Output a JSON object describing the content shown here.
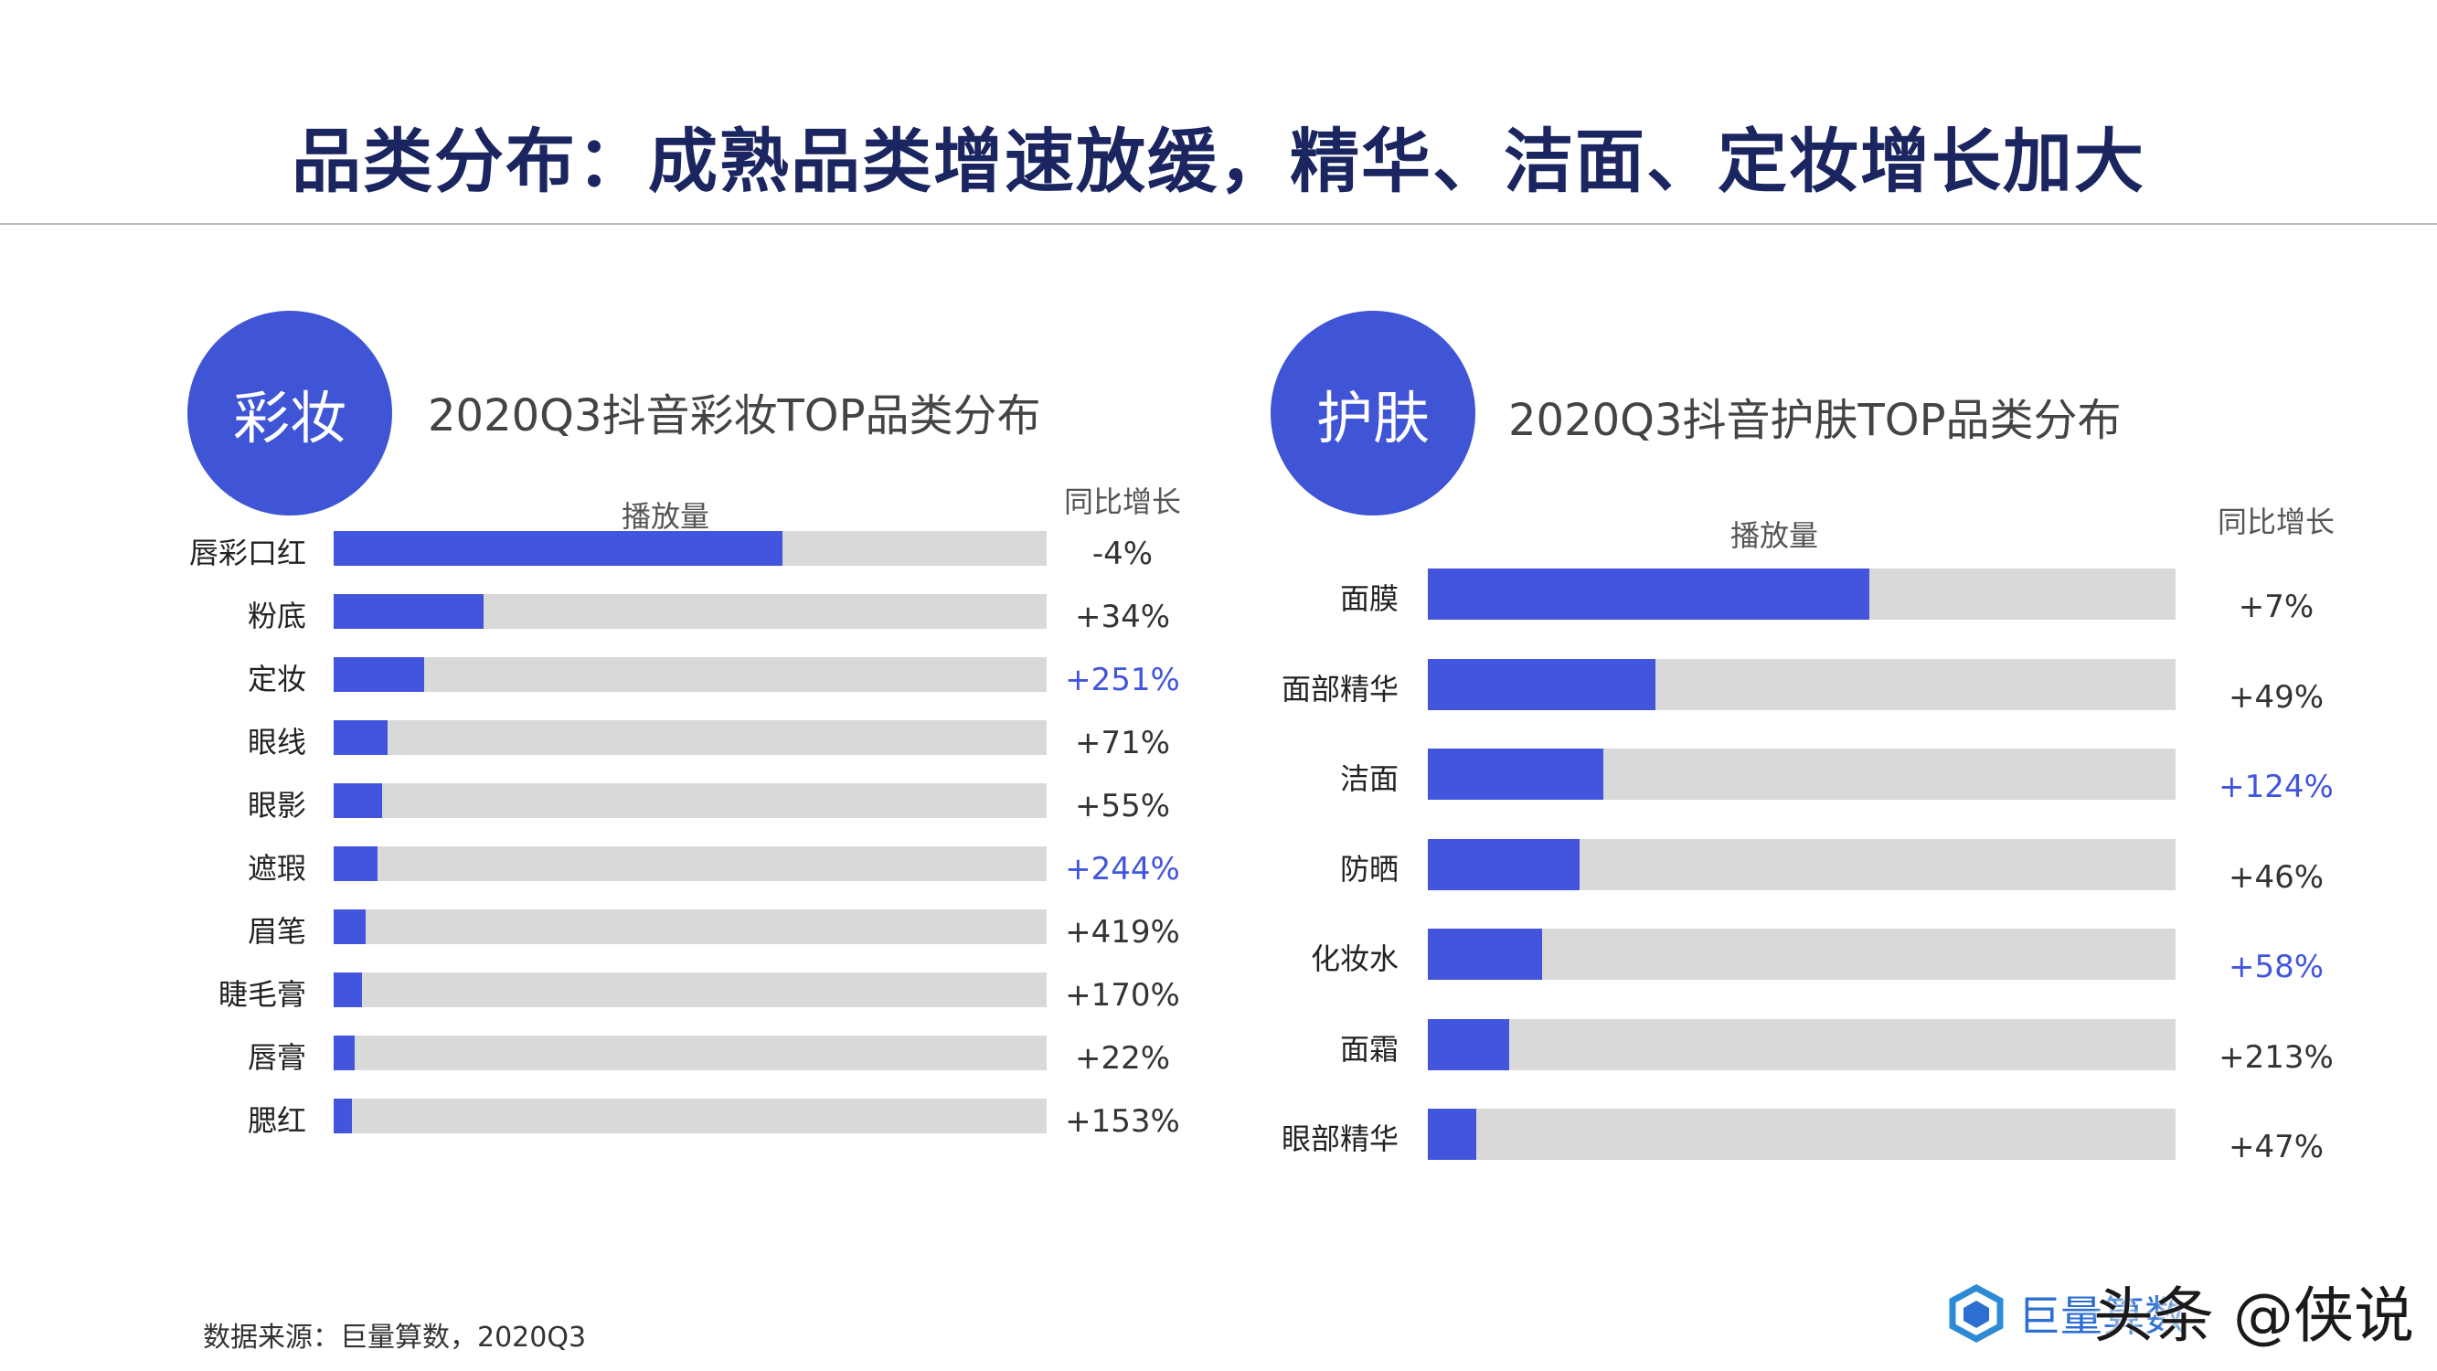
{
  "title": "品类分布：成熟品类增速放缓，精华、洁面、定妆增长加大",
  "source": "数据来源：巨量算数，2020Q3",
  "logo_text": "巨量算数",
  "watermark": "头条 @侠说",
  "colors": {
    "fill": "#4255dc",
    "track": "#d9d9d9",
    "circle": "#3f55d5",
    "highlight": "#4255dc",
    "text": "#333333",
    "title": "#1b2560"
  },
  "chart_data": [
    {
      "type": "bar",
      "orientation": "horizontal",
      "badge": "彩妆",
      "title": "2020Q3抖音彩妆TOP品类分布",
      "xlabel": "播放量",
      "growth_header": "同比增长",
      "categories": [
        "唇彩口红",
        "粉底",
        "定妆",
        "眼线",
        "眼影",
        "遮瑕",
        "眉笔",
        "睫毛膏",
        "唇膏",
        "腮红"
      ],
      "values": [
        63,
        21,
        12.7,
        7.5,
        6.8,
        6.2,
        4.5,
        4.0,
        3.0,
        2.5
      ],
      "xlim": [
        0,
        100
      ],
      "growth": [
        "-4%",
        "+34%",
        "+251%",
        "+71%",
        "+55%",
        "+244%",
        "+419%",
        "+170%",
        "+22%",
        "+153%"
      ],
      "growth_highlight": [
        false,
        false,
        true,
        false,
        false,
        true,
        false,
        false,
        false,
        false
      ]
    },
    {
      "type": "bar",
      "orientation": "horizontal",
      "badge": "护肤",
      "title": "2020Q3抖音护肤TOP品类分布",
      "xlabel": "播放量",
      "growth_header": "同比增长",
      "categories": [
        "面膜",
        "面部精华",
        "洁面",
        "防晒",
        "化妆水",
        "面霜",
        "眼部精华"
      ],
      "values": [
        59,
        30.5,
        23.5,
        20.3,
        15.3,
        10.9,
        6.5
      ],
      "xlim": [
        0,
        100
      ],
      "growth": [
        "+7%",
        "+49%",
        "+124%",
        "+46%",
        "+58%",
        "+213%",
        "+47%"
      ],
      "growth_highlight": [
        false,
        false,
        true,
        false,
        true,
        false,
        false
      ]
    }
  ]
}
